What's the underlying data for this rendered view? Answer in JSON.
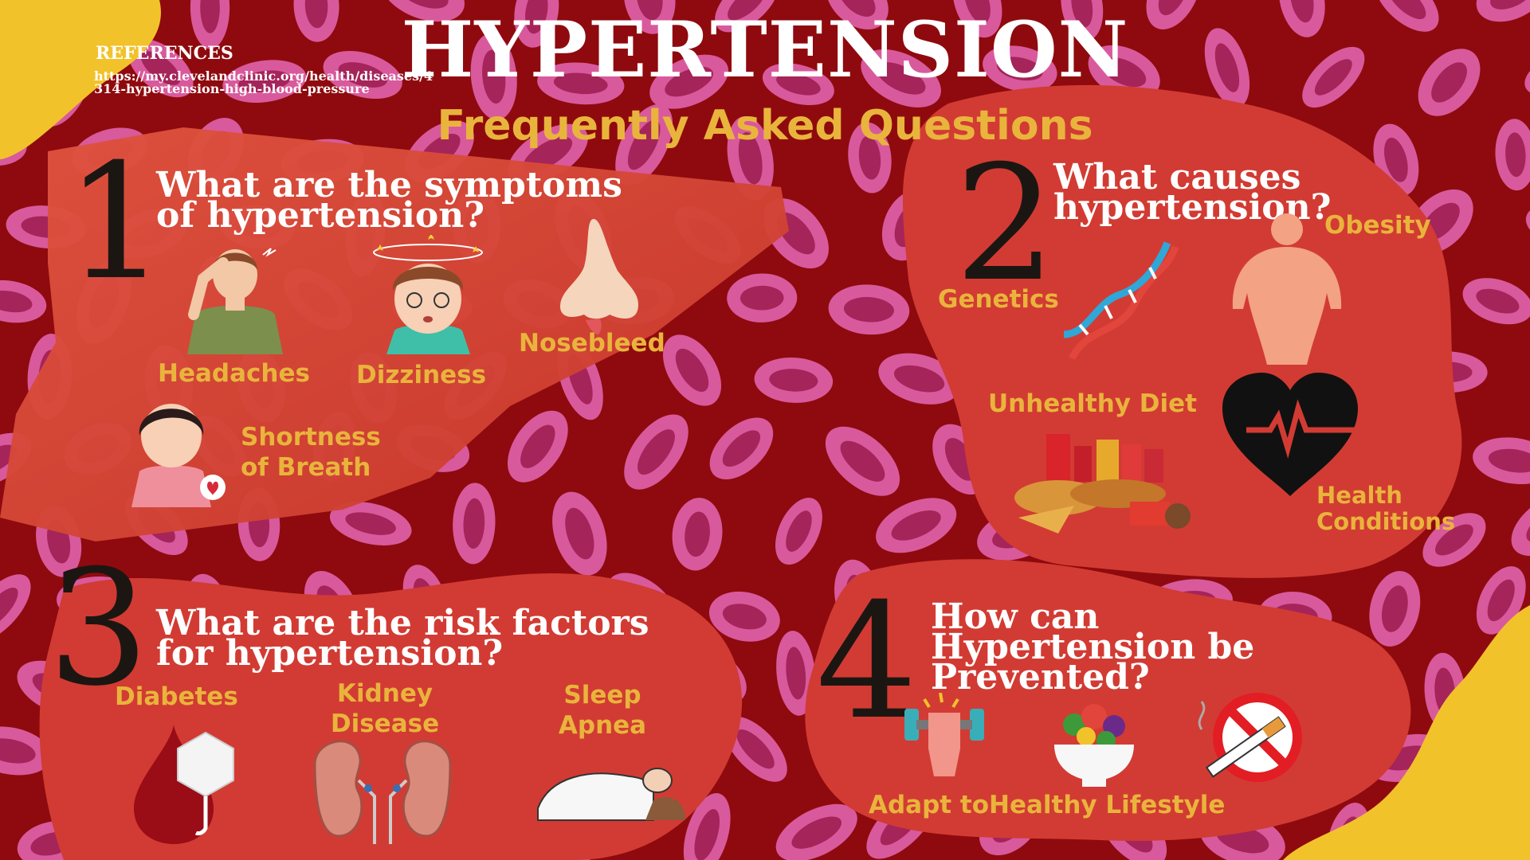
{
  "title": "HYPERTENSION",
  "subtitle": "Frequently Asked Questions",
  "references": {
    "heading": "REFERENCES",
    "url": "https://my.clevelandclinic.org/health/diseases/4314-hypertension-high-blood-pressure"
  },
  "sections": [
    {
      "number": "1",
      "question": "What are the symptoms of hypertension?",
      "items": [
        "Headaches",
        "Dizziness",
        "Nosebleed",
        "Shortness of Breath"
      ]
    },
    {
      "number": "2",
      "question": "What causes hypertension?",
      "items": [
        "Genetics",
        "Obesity",
        "Unhealthy Diet",
        "Health Conditions"
      ]
    },
    {
      "number": "3",
      "question": "What are the risk factors for hypertension?",
      "items": [
        "Diabetes",
        "Kidney Disease",
        "Sleep Apnea"
      ]
    },
    {
      "number": "4",
      "question": "How can Hypertension be Prevented?",
      "items": [
        "Adapt toHealthy Lifestyle"
      ]
    }
  ],
  "icons": {
    "s1": [
      "headache-person-icon",
      "dizzy-person-icon",
      "nose-icon",
      "breathless-girl-icon"
    ],
    "s2": [
      "dna-icon",
      "obese-body-icon",
      "junk-food-icon",
      "heart-pulse-icon"
    ],
    "s3": [
      "blood-drop-sugar-icon",
      "kidneys-icon",
      "sleeping-person-icon"
    ],
    "s4": [
      "dumbbell-fist-icon",
      "salad-bowl-icon",
      "no-smoking-icon"
    ]
  },
  "colors": {
    "background": "#8f0a0e",
    "panel": "#d23b33",
    "accent": "#e9b43c",
    "cell": "#d85a9c",
    "yellow_blob": "#f2c22b"
  }
}
